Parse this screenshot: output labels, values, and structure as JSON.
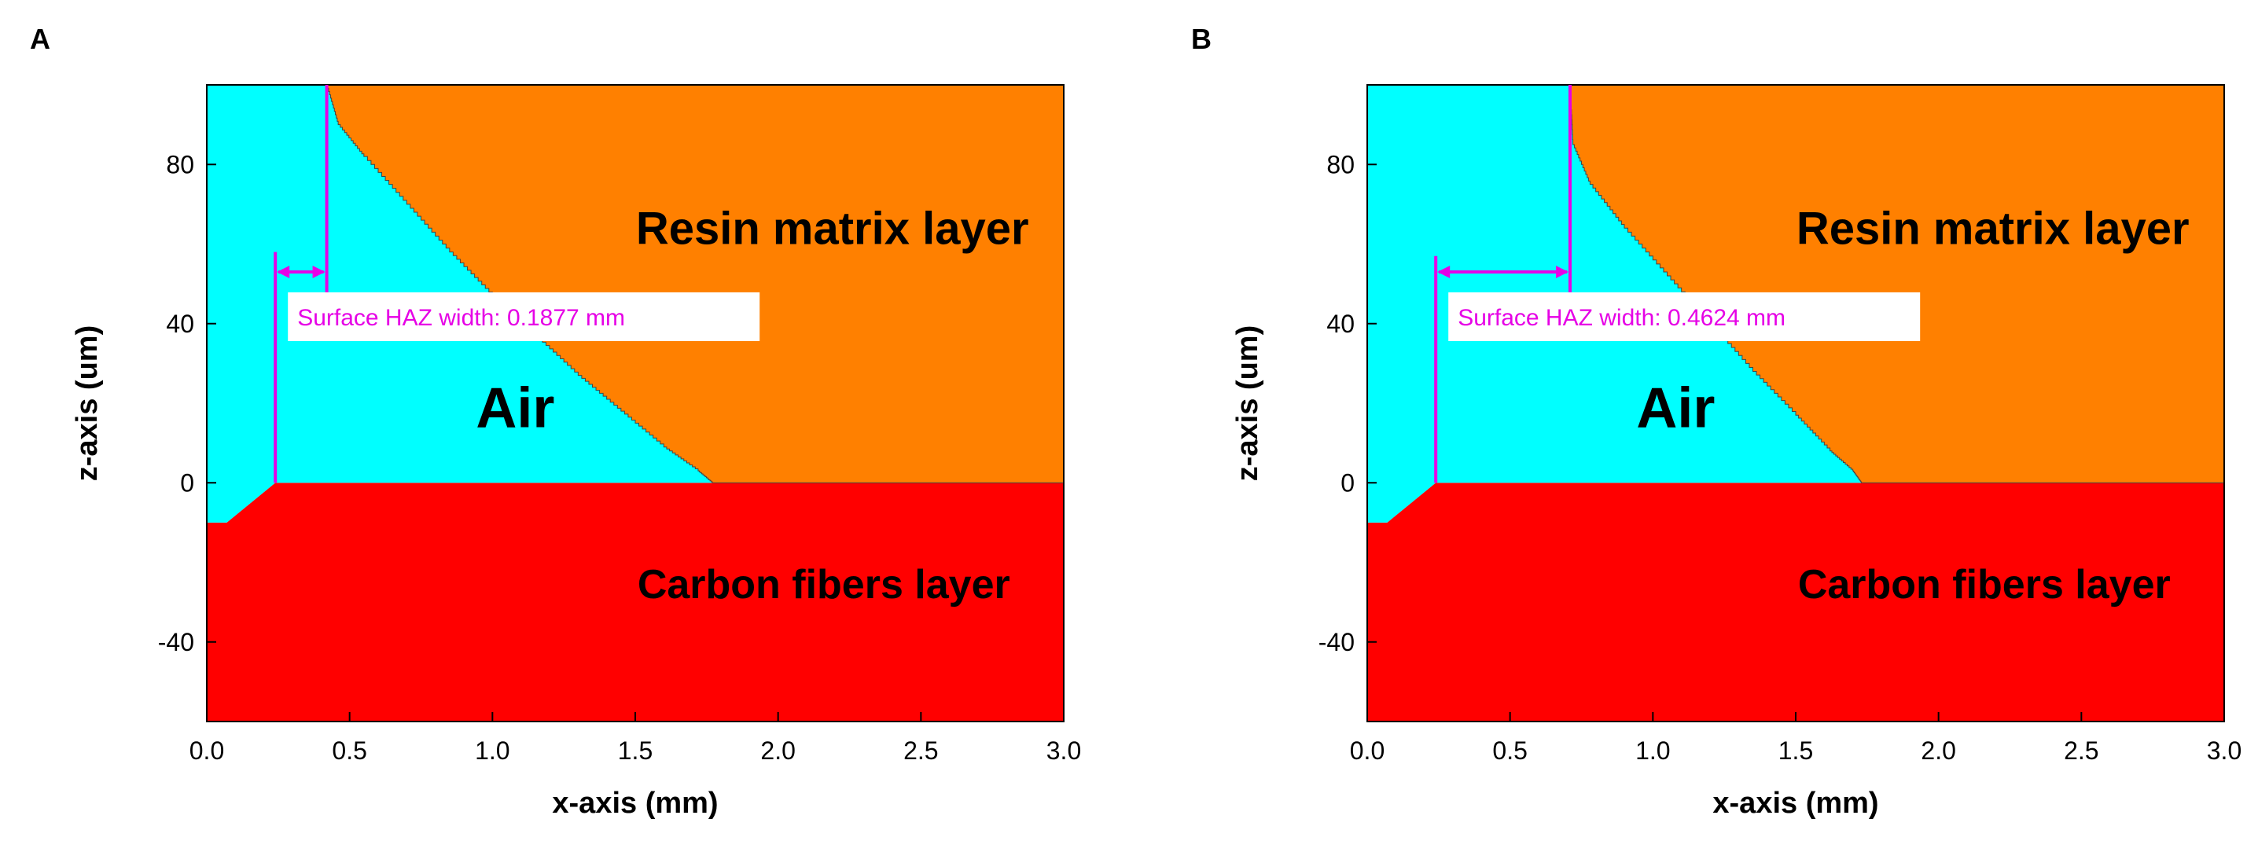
{
  "chart_data": [
    {
      "type": "area",
      "panel_label": "A",
      "xlabel": "x-axis (mm)",
      "ylabel": "z-axis (um)",
      "xlim": [
        0.0,
        3.0
      ],
      "ylim": [
        -60,
        100
      ],
      "xticks": [
        "0.0",
        "0.5",
        "1.0",
        "1.5",
        "2.0",
        "2.5",
        "3.0"
      ],
      "yticks": [
        "-40",
        "0",
        "40",
        "80"
      ],
      "xtick_values": [
        0,
        0.5,
        1.0,
        1.5,
        2.0,
        2.5,
        3.0
      ],
      "ytick_values": [
        -40,
        0,
        40,
        80
      ],
      "colors": {
        "air": "#00ffff",
        "resin": "#ff8000",
        "carbon": "#ff0000",
        "haz": "#e600e6"
      },
      "regions": {
        "resin": "Resin matrix layer",
        "air": "Air",
        "carbon": "Carbon fibers layer"
      },
      "resin_boundary": [
        [
          0.42,
          100
        ],
        [
          0.46,
          90
        ],
        [
          0.55,
          82
        ],
        [
          0.7,
          70
        ],
        [
          0.85,
          58
        ],
        [
          1.0,
          47
        ],
        [
          1.15,
          37
        ],
        [
          1.3,
          27
        ],
        [
          1.45,
          18
        ],
        [
          1.6,
          9
        ],
        [
          1.72,
          3
        ],
        [
          1.77,
          0
        ]
      ],
      "carbon_boundary": [
        [
          0.0,
          -10
        ],
        [
          0.07,
          -10
        ],
        [
          0.24,
          0
        ],
        [
          3.0,
          0
        ]
      ],
      "haz_line_start_x": 0.24,
      "haz_line_end_x": 0.42,
      "haz_vertical_top_z": 58,
      "haz_arrow_z": 53,
      "haz_label": "Surface HAZ width: 0.1877 mm"
    },
    {
      "type": "area",
      "panel_label": "B",
      "xlabel": "x-axis (mm)",
      "ylabel": "z-axis (um)",
      "xlim": [
        0.0,
        3.0
      ],
      "ylim": [
        -60,
        100
      ],
      "xticks": [
        "0.0",
        "0.5",
        "1.0",
        "1.5",
        "2.0",
        "2.5",
        "3.0"
      ],
      "yticks": [
        "-40",
        "0",
        "40",
        "80"
      ],
      "xtick_values": [
        0,
        0.5,
        1.0,
        1.5,
        2.0,
        2.5,
        3.0
      ],
      "ytick_values": [
        -40,
        0,
        40,
        80
      ],
      "colors": {
        "air": "#00ffff",
        "resin": "#ff8000",
        "carbon": "#ff0000",
        "haz": "#e600e6"
      },
      "regions": {
        "resin": "Resin matrix layer",
        "air": "Air",
        "carbon": "Carbon fibers layer"
      },
      "resin_boundary": [
        [
          0.71,
          100
        ],
        [
          0.72,
          85
        ],
        [
          0.78,
          75
        ],
        [
          0.9,
          64
        ],
        [
          1.05,
          52
        ],
        [
          1.2,
          40
        ],
        [
          1.35,
          28
        ],
        [
          1.5,
          17
        ],
        [
          1.62,
          8
        ],
        [
          1.7,
          3
        ],
        [
          1.73,
          0
        ]
      ],
      "carbon_boundary": [
        [
          0.0,
          -10
        ],
        [
          0.07,
          -10
        ],
        [
          0.24,
          0
        ],
        [
          3.0,
          0
        ]
      ],
      "haz_line_start_x": 0.24,
      "haz_line_end_x": 0.71,
      "haz_vertical_top_z": 57,
      "haz_arrow_z": 53,
      "haz_label": "Surface HAZ width: 0.4624 mm"
    }
  ]
}
